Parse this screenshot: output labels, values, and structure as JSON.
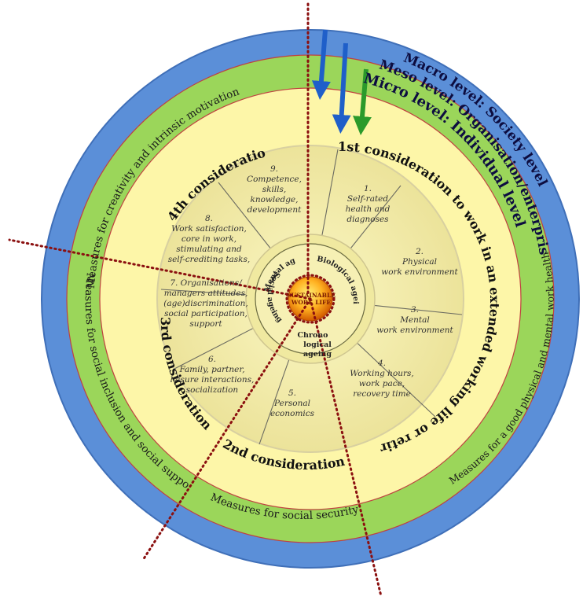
{
  "levels": {
    "macro": "Macro level: Society level",
    "meso": "Meso level: Organisation/enterprise level",
    "micro": "Micro level: Individual level"
  },
  "measures": {
    "creativity": "Measures for creativity and intrinsic motivation",
    "health": "Measures for a good physical and mental work health",
    "inclusion": "Measures for social inclusion and social support",
    "security": "Measures for social security"
  },
  "considerations": {
    "first": "1st consideration to work in an extended working life or retire",
    "second": "2nd consideration",
    "third": "3rd consideration",
    "fourth": "4th consideration"
  },
  "segments": [
    {
      "id": "s1",
      "lines": [
        "1.",
        "Self-rated",
        "health and",
        "diagnoses"
      ]
    },
    {
      "id": "s2",
      "lines": [
        "2.",
        "Physical",
        "work environment"
      ]
    },
    {
      "id": "s3",
      "lines": [
        "3.",
        "Mental",
        "work environment"
      ]
    },
    {
      "id": "s4",
      "lines": [
        "4.",
        "Working hours,",
        "work pace,",
        "recovery time"
      ]
    },
    {
      "id": "s5",
      "lines": [
        "5.",
        "Personal",
        "economics"
      ]
    },
    {
      "id": "s6",
      "lines": [
        "6.",
        "Family, partner,",
        "leisure interactions,",
        "socialization"
      ]
    },
    {
      "id": "s7",
      "lines": [
        "7. Organisations/",
        "managers attitudes,",
        "(age)discrimination,",
        "social participation,",
        "support"
      ]
    },
    {
      "id": "s8",
      "lines": [
        "8.",
        "Work satisfaction,",
        "core in work,",
        "stimulating and",
        "self-crediting tasks,"
      ]
    },
    {
      "id": "s9",
      "lines": [
        "9.",
        "Competence,",
        "skills,",
        "knowledge,",
        "development"
      ]
    }
  ],
  "ageing": {
    "mental": "Mental ageing",
    "biological": "Biological ageing",
    "social": "Social ageing",
    "chronological": [
      "Chrono",
      "logical",
      "ageing"
    ]
  },
  "core": [
    "SUSTAINABLE",
    "WORK LIFE"
  ],
  "colors": {
    "macro_ring": "#5b8fd8",
    "meso_ring": "#9bd65a",
    "micro_disk": "#fdf6a8",
    "inner_disk": "#f4eea0",
    "arrow_blue": "#1f5fc9",
    "arrow_green": "#2b9a2b",
    "dotted_line": "#8b1010",
    "core_fill": "#ff9a1a"
  }
}
